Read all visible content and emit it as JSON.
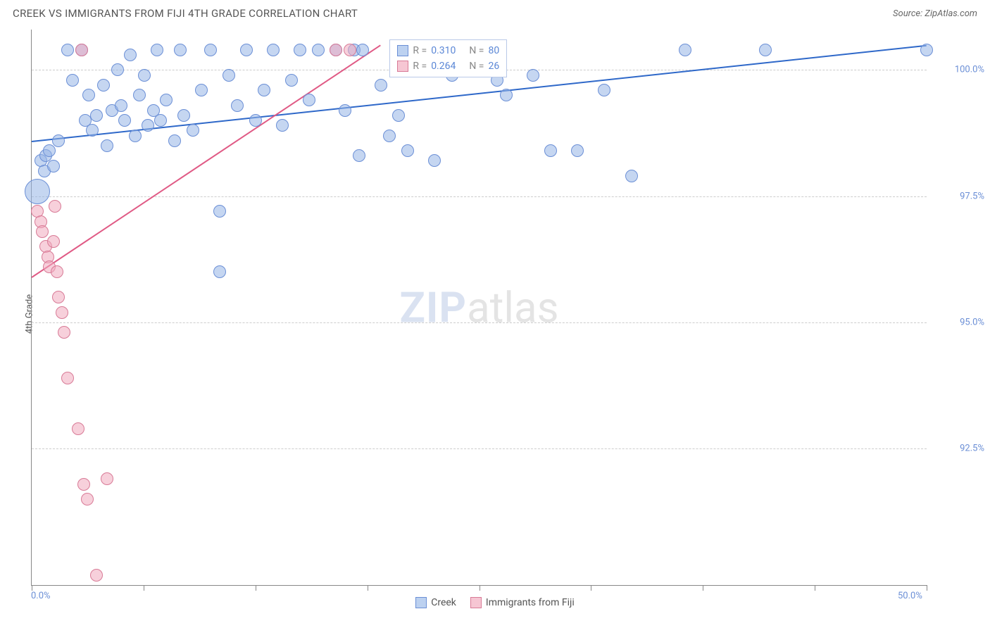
{
  "header": {
    "title": "CREEK VS IMMIGRANTS FROM FIJI 4TH GRADE CORRELATION CHART",
    "source": "Source: ZipAtlas.com"
  },
  "watermark": {
    "part1": "ZIP",
    "part2": "atlas"
  },
  "chart": {
    "type": "scatter",
    "ylabel": "4th Grade",
    "background_color": "#ffffff",
    "grid_color": "#cccccc",
    "axis_color": "#888888",
    "xlim": [
      0,
      50
    ],
    "ylim": [
      89.8,
      100.8
    ],
    "xtick_positions_pct": [
      0,
      12.5,
      25,
      37.5,
      50,
      62.5,
      75,
      87.5,
      100
    ],
    "xtick_labels": [
      {
        "pos": 0,
        "text": "0.0%"
      },
      {
        "pos": 100,
        "text": "50.0%"
      }
    ],
    "ytick_labels": [
      {
        "val": 100.0,
        "text": "100.0%"
      },
      {
        "val": 97.5,
        "text": "97.5%"
      },
      {
        "val": 95.0,
        "text": "95.0%"
      },
      {
        "val": 92.5,
        "text": "92.5%"
      }
    ],
    "legend_top": {
      "rows": [
        {
          "swatch_fill": "#bcd1f0",
          "swatch_border": "#6b8fd6",
          "r_label": "R",
          "r": "0.310",
          "n_label": "N",
          "n": "80"
        },
        {
          "swatch_fill": "#f6c6d3",
          "swatch_border": "#d87a96",
          "r_label": "R",
          "r": "0.264",
          "n_label": "N",
          "n": "26"
        }
      ]
    },
    "legend_bottom": [
      {
        "swatch_fill": "#bcd1f0",
        "swatch_border": "#6b8fd6",
        "label": "Creek"
      },
      {
        "swatch_fill": "#f6c6d3",
        "swatch_border": "#d87a96",
        "label": "Immigrants from Fiji"
      }
    ],
    "series": [
      {
        "name": "creek",
        "fill": "rgba(150,180,230,0.55)",
        "stroke": "#6b8fd6",
        "marker_radius": 9,
        "trend_color": "#2e68c9",
        "trend": {
          "x1": 0,
          "y1": 98.6,
          "x2": 50,
          "y2": 100.5
        },
        "points": [
          [
            0.3,
            97.6,
            18
          ],
          [
            0.5,
            98.2
          ],
          [
            0.7,
            98.0
          ],
          [
            0.8,
            98.3
          ],
          [
            1.0,
            98.4
          ],
          [
            1.2,
            98.1
          ],
          [
            1.5,
            98.6
          ],
          [
            2.0,
            100.4
          ],
          [
            2.3,
            99.8
          ],
          [
            2.8,
            100.4
          ],
          [
            3.0,
            99.0
          ],
          [
            3.2,
            99.5
          ],
          [
            3.4,
            98.8
          ],
          [
            3.6,
            99.1
          ],
          [
            4.0,
            99.7
          ],
          [
            4.2,
            98.5
          ],
          [
            4.5,
            99.2
          ],
          [
            4.8,
            100.0
          ],
          [
            5.0,
            99.3
          ],
          [
            5.2,
            99.0
          ],
          [
            5.5,
            100.3
          ],
          [
            5.8,
            98.7
          ],
          [
            6.0,
            99.5
          ],
          [
            6.3,
            99.9
          ],
          [
            6.5,
            98.9
          ],
          [
            6.8,
            99.2
          ],
          [
            7.0,
            100.4
          ],
          [
            7.2,
            99.0
          ],
          [
            7.5,
            99.4
          ],
          [
            8.0,
            98.6
          ],
          [
            8.3,
            100.4
          ],
          [
            8.5,
            99.1
          ],
          [
            9.0,
            98.8
          ],
          [
            9.5,
            99.6
          ],
          [
            10.0,
            100.4
          ],
          [
            10.5,
            97.2
          ],
          [
            10.5,
            96.0
          ],
          [
            11.0,
            99.9
          ],
          [
            11.5,
            99.3
          ],
          [
            12.0,
            100.4
          ],
          [
            12.5,
            99.0
          ],
          [
            13.0,
            99.6
          ],
          [
            13.5,
            100.4
          ],
          [
            14.0,
            98.9
          ],
          [
            14.5,
            99.8
          ],
          [
            15.0,
            100.4
          ],
          [
            15.5,
            99.4
          ],
          [
            16.0,
            100.4
          ],
          [
            17.0,
            100.4
          ],
          [
            17.5,
            99.2
          ],
          [
            18.0,
            100.4
          ],
          [
            18.3,
            98.3
          ],
          [
            18.5,
            100.4
          ],
          [
            19.5,
            99.7
          ],
          [
            20.0,
            98.7
          ],
          [
            20.5,
            99.1
          ],
          [
            21.0,
            98.4
          ],
          [
            21.5,
            100.4
          ],
          [
            22.5,
            98.2
          ],
          [
            23.5,
            99.9
          ],
          [
            25.0,
            100.4
          ],
          [
            26.0,
            99.8
          ],
          [
            26.5,
            99.5
          ],
          [
            28.0,
            99.9
          ],
          [
            29.0,
            98.4
          ],
          [
            30.5,
            98.4
          ],
          [
            32.0,
            99.6
          ],
          [
            33.5,
            97.9
          ],
          [
            36.5,
            100.4
          ],
          [
            41.0,
            100.4
          ],
          [
            50.0,
            100.4
          ]
        ]
      },
      {
        "name": "fiji",
        "fill": "rgba(240,170,190,0.55)",
        "stroke": "#d87a96",
        "marker_radius": 9,
        "trend_color": "#e05a85",
        "trend": {
          "x1": 0,
          "y1": 95.9,
          "x2": 19.5,
          "y2": 100.5
        },
        "points": [
          [
            0.3,
            97.2
          ],
          [
            0.5,
            97.0
          ],
          [
            0.6,
            96.8
          ],
          [
            0.8,
            96.5
          ],
          [
            0.9,
            96.3
          ],
          [
            1.0,
            96.1
          ],
          [
            1.2,
            96.6
          ],
          [
            1.4,
            96.0
          ],
          [
            1.5,
            95.5
          ],
          [
            1.7,
            95.2
          ],
          [
            1.3,
            97.3
          ],
          [
            1.8,
            94.8
          ],
          [
            2.0,
            93.9
          ],
          [
            2.6,
            92.9
          ],
          [
            2.8,
            100.4
          ],
          [
            2.9,
            91.8
          ],
          [
            3.1,
            91.5
          ],
          [
            3.6,
            90.0
          ],
          [
            4.2,
            91.9
          ],
          [
            17.0,
            100.4
          ],
          [
            17.8,
            100.4
          ]
        ]
      }
    ]
  }
}
